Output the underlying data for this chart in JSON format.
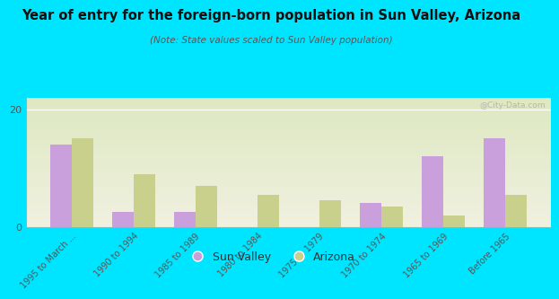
{
  "title": "Year of entry for the foreign-born population in Sun Valley, Arizona",
  "subtitle": "(Note: State values scaled to Sun Valley population)",
  "categories": [
    "1995 to March ...",
    "1990 to 1994",
    "1985 to 1989",
    "1980 to 1984",
    "1975 to 1979",
    "1970 to 1974",
    "1965 to 1969",
    "Before 1965"
  ],
  "sun_valley": [
    14,
    2.5,
    2.5,
    0,
    0,
    4,
    12,
    15
  ],
  "arizona": [
    15,
    9,
    7,
    5.5,
    4.5,
    3.5,
    2,
    5.5
  ],
  "sun_valley_color": "#c9a0dc",
  "arizona_color": "#c8d08c",
  "background_outer": "#00e5ff",
  "background_plot_top": "#dde8c0",
  "background_plot_bottom": "#f0f0e0",
  "ylim": [
    0,
    22
  ],
  "yticks": [
    0,
    20
  ],
  "bar_width": 0.35,
  "watermark": "@City-Data.com"
}
